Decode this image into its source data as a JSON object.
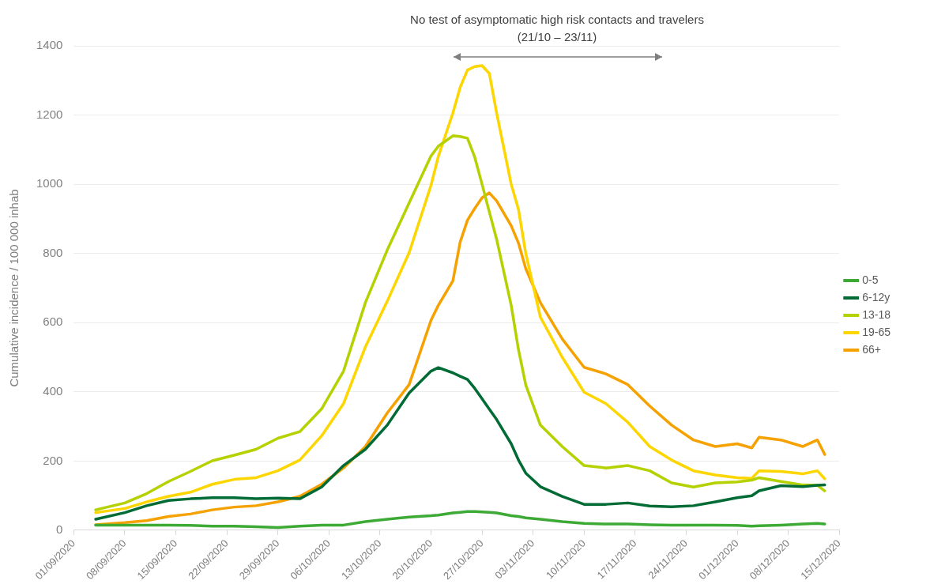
{
  "chart_data": {
    "type": "line",
    "ylabel": "Cumulative incidence / 100 000 inhab",
    "annotations": [
      "No test of asymptomatic high risk contacts and travelers (21/10 – 23/11)"
    ],
    "x": [
      "2020-09-04",
      "2020-09-08",
      "2020-09-11",
      "2020-09-14",
      "2020-09-17",
      "2020-09-20",
      "2020-09-23",
      "2020-09-26",
      "2020-09-29",
      "2020-10-02",
      "2020-10-05",
      "2020-10-08",
      "2020-10-11",
      "2020-10-14",
      "2020-10-17",
      "2020-10-20",
      "2020-10-21",
      "2020-10-23",
      "2020-10-24",
      "2020-10-25",
      "2020-10-26",
      "2020-10-27",
      "2020-10-28",
      "2020-10-29",
      "2020-10-31",
      "2020-11-01",
      "2020-11-02",
      "2020-11-04",
      "2020-11-07",
      "2020-11-10",
      "2020-11-13",
      "2020-11-16",
      "2020-11-19",
      "2020-11-22",
      "2020-11-25",
      "2020-11-28",
      "2020-12-01",
      "2020-12-03",
      "2020-12-04",
      "2020-12-07",
      "2020-12-10",
      "2020-12-12",
      "2020-12-13"
    ],
    "series": [
      {
        "name": "0-5",
        "color": "#3daa35",
        "values": [
          15,
          15,
          15,
          15,
          14,
          12,
          12,
          10,
          8,
          12,
          15,
          15,
          25,
          32,
          38,
          42,
          44,
          50,
          52,
          54,
          54,
          53,
          52,
          50,
          42,
          40,
          36,
          32,
          25,
          20,
          18,
          18,
          16,
          15,
          15,
          15,
          14,
          12,
          13,
          15,
          18,
          20,
          18
        ]
      },
      {
        "name": "6-12y",
        "color": "#006b35",
        "values": [
          32,
          51,
          71,
          86,
          91,
          94,
          94,
          91,
          93,
          91,
          125,
          187,
          234,
          304,
          397,
          460,
          470,
          455,
          445,
          436,
          410,
          380,
          350,
          320,
          250,
          203,
          165,
          126,
          98,
          75,
          75,
          79,
          70,
          68,
          71,
          82,
          94,
          100,
          114,
          129,
          126,
          130,
          131
        ]
      },
      {
        "name": "13-18",
        "color": "#b5d100",
        "values": [
          59,
          79,
          106,
          141,
          170,
          201,
          217,
          234,
          266,
          285,
          351,
          460,
          658,
          810,
          946,
          1082,
          1110,
          1140,
          1138,
          1133,
          1078,
          1000,
          920,
          841,
          650,
          522,
          420,
          304,
          242,
          187,
          180,
          187,
          172,
          137,
          125,
          137,
          140,
          145,
          152,
          141,
          131,
          130,
          114
        ]
      },
      {
        "name": "19-65",
        "color": "#fdd600",
        "values": [
          51,
          63,
          82,
          98,
          110,
          133,
          147,
          152,
          172,
          203,
          273,
          366,
          530,
          662,
          802,
          997,
          1080,
          1206,
          1280,
          1330,
          1340,
          1343,
          1320,
          1206,
          1000,
          927,
          800,
          616,
          500,
          399,
          366,
          312,
          242,
          203,
          172,
          160,
          152,
          150,
          172,
          170,
          163,
          172,
          149
        ]
      },
      {
        "name": "66+",
        "color": "#f5a100",
        "values": [
          16,
          22,
          28,
          40,
          47,
          59,
          67,
          71,
          82,
          98,
          133,
          180,
          242,
          339,
          421,
          607,
          650,
          721,
          833,
          896,
          930,
          961,
          975,
          952,
          880,
          830,
          756,
          658,
          553,
          471,
          452,
          421,
          359,
          304,
          261,
          242,
          250,
          238,
          269,
          261,
          242,
          261,
          219
        ]
      }
    ],
    "xlim": [
      "2020-09-01",
      "2020-12-15"
    ],
    "xticks": [
      {
        "value": "2020-09-01",
        "label": "01/09/2020"
      },
      {
        "value": "2020-09-08",
        "label": "08/09/2020"
      },
      {
        "value": "2020-09-15",
        "label": "15/09/2020"
      },
      {
        "value": "2020-09-22",
        "label": "22/09/2020"
      },
      {
        "value": "2020-09-29",
        "label": "29/09/2020"
      },
      {
        "value": "2020-10-06",
        "label": "06/10/2020"
      },
      {
        "value": "2020-10-13",
        "label": "13/10/2020"
      },
      {
        "value": "2020-10-20",
        "label": "20/10/2020"
      },
      {
        "value": "2020-10-27",
        "label": "27/10/2020"
      },
      {
        "value": "2020-11-03",
        "label": "03/11/2020"
      },
      {
        "value": "2020-11-10",
        "label": "10/11/2020"
      },
      {
        "value": "2020-11-17",
        "label": "17/11/2020"
      },
      {
        "value": "2020-11-24",
        "label": "24/11/2020"
      },
      {
        "value": "2020-12-01",
        "label": "01/12/2020"
      },
      {
        "value": "2020-12-08",
        "label": "08/12/2020"
      },
      {
        "value": "2020-12-15",
        "label": "15/12/2020"
      }
    ],
    "ylim": [
      0,
      1400
    ],
    "yticks": [
      0,
      200,
      400,
      600,
      800,
      1000,
      1200,
      1400
    ],
    "grid": "y",
    "legend": "right",
    "marker": "none",
    "line_style": "solid"
  }
}
